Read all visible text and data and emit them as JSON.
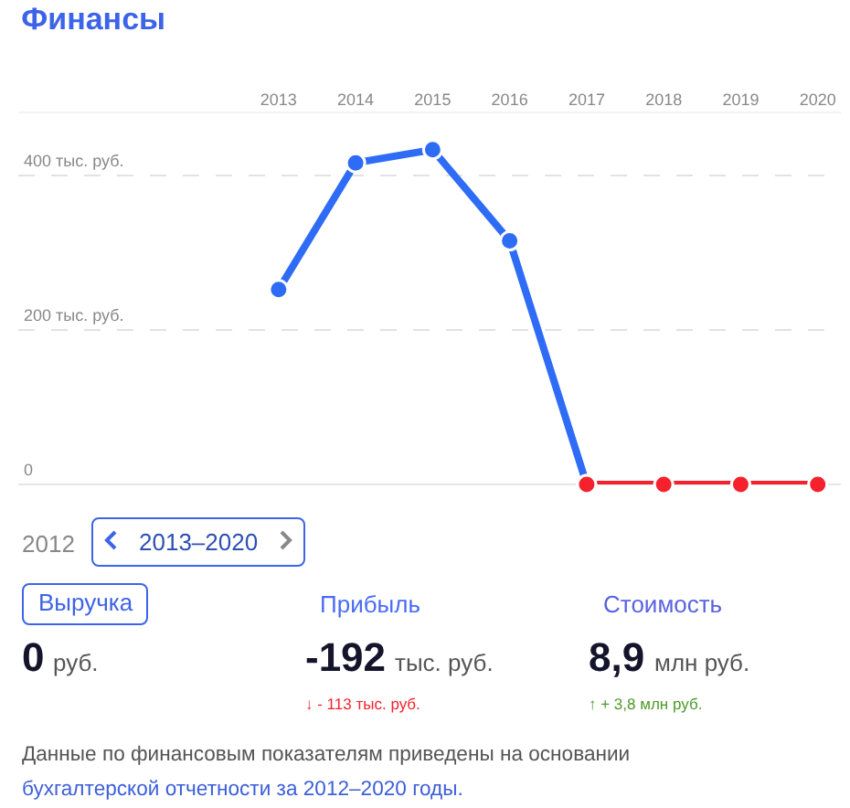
{
  "chart_data": {
    "type": "line",
    "title": "Финансы",
    "categories": [
      "2013",
      "2014",
      "2015",
      "2016",
      "2017",
      "2018",
      "2019",
      "2020"
    ],
    "series": [
      {
        "color": "#2f6cf6",
        "values": [
          252,
          416,
          433,
          315,
          0,
          null,
          null,
          null
        ]
      },
      {
        "color": "#f5222d",
        "values": [
          null,
          null,
          null,
          null,
          0,
          0,
          0,
          0
        ]
      }
    ],
    "ylim": [
      0,
      480
    ],
    "yticks": [
      {
        "value": 0,
        "label": "0"
      },
      {
        "value": 200,
        "label": "200 тыс. руб."
      },
      {
        "value": 400,
        "label": "400 тыс. руб."
      }
    ],
    "grid": "y",
    "marker": "circle",
    "line_style": "solid",
    "annotations": [
      "2012",
      "2013–2020",
      "Выручка",
      "Прибыль",
      "Стоимость",
      "0",
      "руб.",
      "-192",
      "тыс. руб.",
      "8,9",
      "млн руб.",
      "↓ - 113 тыс. руб.",
      "↑ + 3,8 млн руб.",
      "Данные по финансовым показателям приведены на основании",
      "бухгалтерской отчетности за 2012–2020 годы."
    ]
  }
}
